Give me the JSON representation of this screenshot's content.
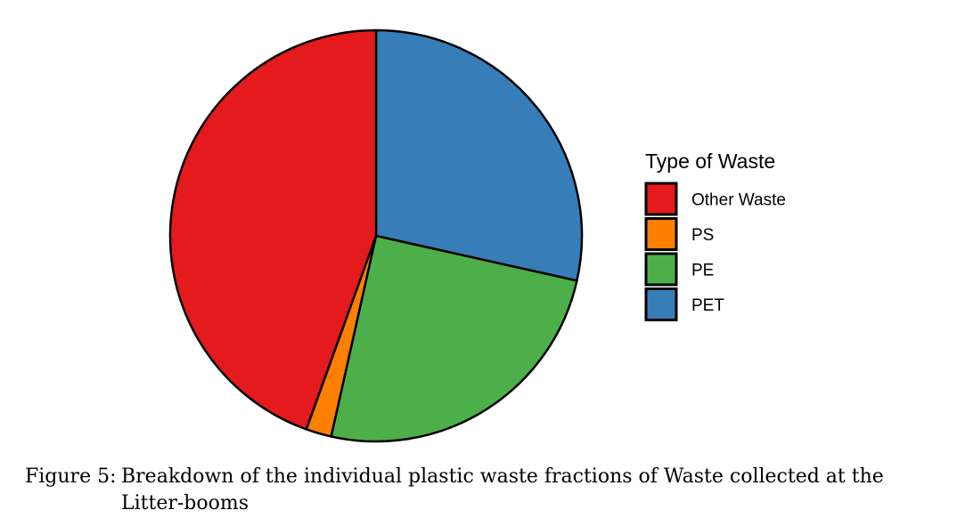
{
  "chart_data": {
    "type": "pie",
    "legend_title": "Type of Waste",
    "legend_position": "right",
    "slices": [
      {
        "label": "Other Waste",
        "value": 44.5,
        "color": "#E41A1C"
      },
      {
        "label": "PS",
        "value": 2.0,
        "color": "#FF7F00"
      },
      {
        "label": "PE",
        "value": 25.0,
        "color": "#4DAF4A"
      },
      {
        "label": "PET",
        "value": 28.5,
        "color": "#377EB8"
      }
    ],
    "slice_order_clockwise_from_top": [
      "PET",
      "PE",
      "PS",
      "Other Waste"
    ]
  },
  "caption": {
    "label": "Figure 5:",
    "text": "Breakdown of the individual plastic waste fractions of Waste collected at the Litter-booms"
  }
}
